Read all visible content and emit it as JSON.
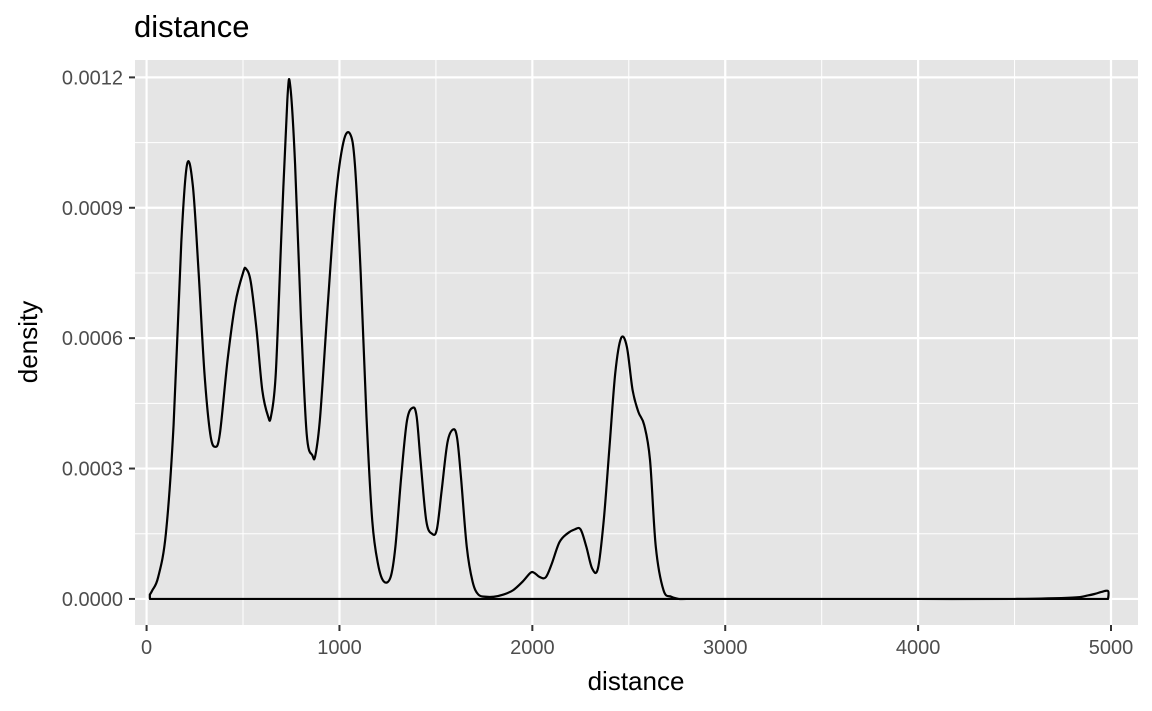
{
  "chart_data": {
    "type": "area",
    "title": "distance",
    "xlabel": "distance",
    "ylabel": "density",
    "xlim": [
      -60,
      5140
    ],
    "ylim": [
      -6e-05,
      0.00124
    ],
    "x_ticks": [
      0,
      1000,
      2000,
      3000,
      4000,
      5000
    ],
    "x_tick_labels": [
      "0",
      "1000",
      "2000",
      "3000",
      "4000",
      "5000"
    ],
    "y_ticks": [
      0,
      0.0003,
      0.0006,
      0.0009,
      0.0012
    ],
    "y_tick_labels": [
      "0.0000",
      "0.0003",
      "0.0006",
      "0.0009",
      "0.0012"
    ],
    "grid": true,
    "legend": "none",
    "colors": {
      "panel": "#e5e5e5",
      "grid": "#ffffff",
      "line": "#000000",
      "tick_text": "#4d4d4d"
    },
    "series": [
      {
        "x": [
          17,
          30,
          60,
          100,
          140,
          180,
          210,
          240,
          270,
          300,
          330,
          355,
          380,
          420,
          460,
          500,
          515,
          540,
          570,
          600,
          630,
          645,
          670,
          700,
          730,
          745,
          770,
          800,
          830,
          860,
          875,
          900,
          940,
          980,
          1020,
          1055,
          1080,
          1110,
          1140,
          1170,
          1200,
          1230,
          1265,
          1290,
          1320,
          1350,
          1380,
          1400,
          1420,
          1450,
          1480,
          1505,
          1530,
          1560,
          1590,
          1610,
          1630,
          1660,
          1690,
          1720,
          1760,
          1800,
          1850,
          1900,
          1950,
          1990,
          2010,
          2040,
          2070,
          2100,
          2140,
          2180,
          2220,
          2250,
          2280,
          2310,
          2340,
          2370,
          2400,
          2430,
          2460,
          2490,
          2520,
          2550,
          2580,
          2610,
          2640,
          2680,
          2720,
          2760,
          2800,
          3000,
          3500,
          4000,
          4500,
          4800,
          4880,
          4920,
          4950,
          4985,
          4985
        ],
        "y": [
          1e-05,
          2e-05,
          5e-05,
          0.00015,
          0.0004,
          0.00082,
          0.001,
          0.00095,
          0.00075,
          0.00052,
          0.00038,
          0.00035,
          0.00038,
          0.00055,
          0.00068,
          0.00075,
          0.00076,
          0.00073,
          0.00062,
          0.00048,
          0.00042,
          0.00042,
          0.00052,
          0.00085,
          0.00115,
          0.00118,
          0.001,
          0.00065,
          0.00038,
          0.00033,
          0.00033,
          0.00042,
          0.00068,
          0.00092,
          0.00105,
          0.00107,
          0.001,
          0.00075,
          0.00042,
          0.00018,
          8e-05,
          4e-05,
          5e-05,
          0.00012,
          0.00028,
          0.00041,
          0.00044,
          0.00042,
          0.00032,
          0.00018,
          0.00015,
          0.00016,
          0.00025,
          0.00036,
          0.00039,
          0.00037,
          0.00028,
          0.00012,
          4e-05,
          1e-05,
          5e-06,
          5e-06,
          1e-05,
          2e-05,
          4e-05,
          6e-05,
          6e-05,
          5e-05,
          5e-05,
          8e-05,
          0.00013,
          0.00015,
          0.00016,
          0.00016,
          0.00012,
          7e-05,
          7e-05,
          0.00018,
          0.00035,
          0.00052,
          0.0006,
          0.00058,
          0.00048,
          0.00043,
          0.0004,
          0.00032,
          0.00012,
          2e-05,
          5e-06,
          0,
          0,
          0,
          0,
          0,
          0,
          3e-06,
          8e-06,
          1.2e-05,
          1.6e-05,
          1.8e-05,
          0
        ]
      }
    ]
  }
}
